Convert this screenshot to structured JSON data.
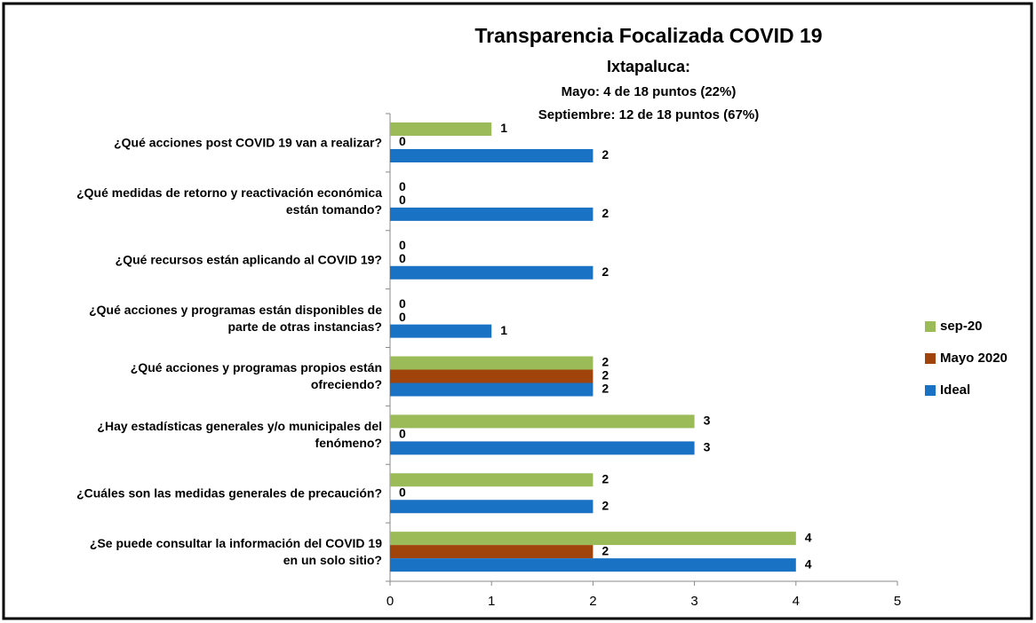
{
  "chart_data": {
    "type": "bar",
    "orientation": "horizontal",
    "title": "Transparencia Focalizada COVID 19",
    "subtitle": "Ixtapaluca:",
    "annotations": [
      "Mayo: 4 de 18 puntos (22%)",
      "Septiembre: 12 de 18 puntos (67%)"
    ],
    "categories": [
      "¿Qué acciones post COVID 19 van a realizar?",
      "¿Qué medidas de retorno y reactivación económica\nestán tomando?",
      "¿Qué recursos están aplicando al COVID 19?",
      "¿Qué acciones y programas están disponibles de\nparte de otras instancias?",
      "¿Qué acciones y programas propios están\nofreciendo?",
      "¿Hay estadísticas generales y/o municipales del\nfenómeno?",
      "¿Cuáles son las medidas generales de precaución?",
      "¿Se puede consultar la información del COVID 19\nen un solo sitio?"
    ],
    "series": [
      {
        "name": "sep-20",
        "color": "#9bbb59",
        "values": [
          1,
          0,
          0,
          0,
          2,
          3,
          2,
          4
        ]
      },
      {
        "name": "Mayo 2020",
        "color": "#a0440c",
        "values": [
          0,
          0,
          0,
          0,
          2,
          0,
          0,
          2
        ]
      },
      {
        "name": "Ideal",
        "color": "#1a72c4",
        "values": [
          2,
          2,
          2,
          1,
          2,
          3,
          2,
          4
        ]
      }
    ],
    "xlim": [
      0,
      5
    ],
    "xticks": [
      0,
      1,
      2,
      3,
      4,
      5
    ],
    "grid": false,
    "legend": "right"
  }
}
